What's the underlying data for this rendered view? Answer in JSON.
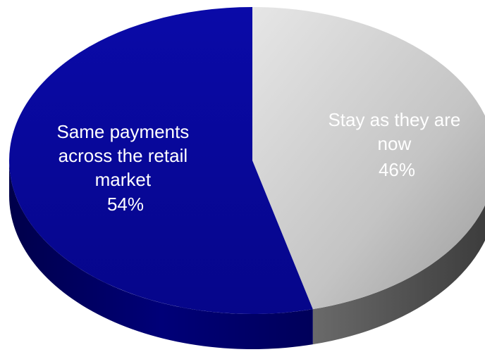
{
  "chart_data": {
    "type": "pie",
    "style": "3d",
    "slices": [
      {
        "label_lines": [
          "Stay as they",
          "are",
          "now"
        ],
        "label_text": "Stay as they are now",
        "value": 46,
        "value_label": "46%",
        "color": "#c4c4c4",
        "side_color": "#5a5a5a"
      },
      {
        "label_lines": [
          "Same payments",
          "across the retail",
          "market"
        ],
        "label_text": "Same payments across the retail market",
        "value": 54,
        "value_label": "54%",
        "color": "#0a0a9c",
        "side_color": "#000066"
      }
    ]
  }
}
